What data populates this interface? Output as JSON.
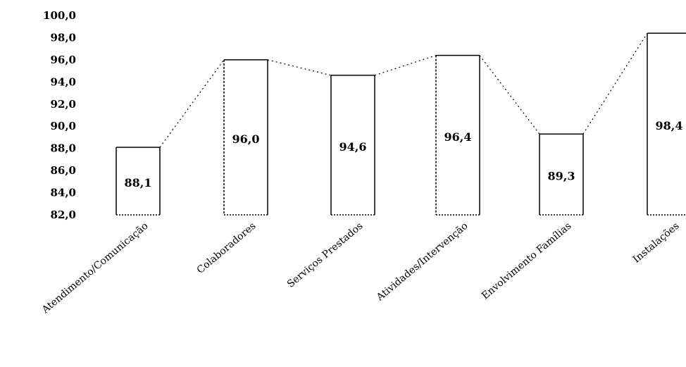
{
  "chart_data": {
    "type": "bar",
    "categories": [
      "Atendimento/Comunicação",
      "Colaboradores",
      "Serviços Prestados",
      "Atividades/Intervenção",
      "Envolvimento Famílias",
      "Instalações"
    ],
    "values": [
      88.1,
      96.0,
      94.6,
      96.4,
      89.3,
      98.4
    ],
    "value_labels": [
      "88,1",
      "96,0",
      "94,6",
      "96,4",
      "89,3",
      "98,4"
    ],
    "y_tick_labels": [
      "82,0",
      "84,0",
      "86,0",
      "88,0",
      "90,0",
      "92,0",
      "94,0",
      "96,0",
      "98,0",
      "100,0"
    ],
    "ylim": [
      82,
      100
    ],
    "title": "",
    "xlabel": "",
    "ylabel": "",
    "grid": false,
    "legend": "none",
    "colors": {
      "bar_fill": "#ffffff",
      "bar_stroke": "#000000",
      "connector": "#000000"
    }
  }
}
